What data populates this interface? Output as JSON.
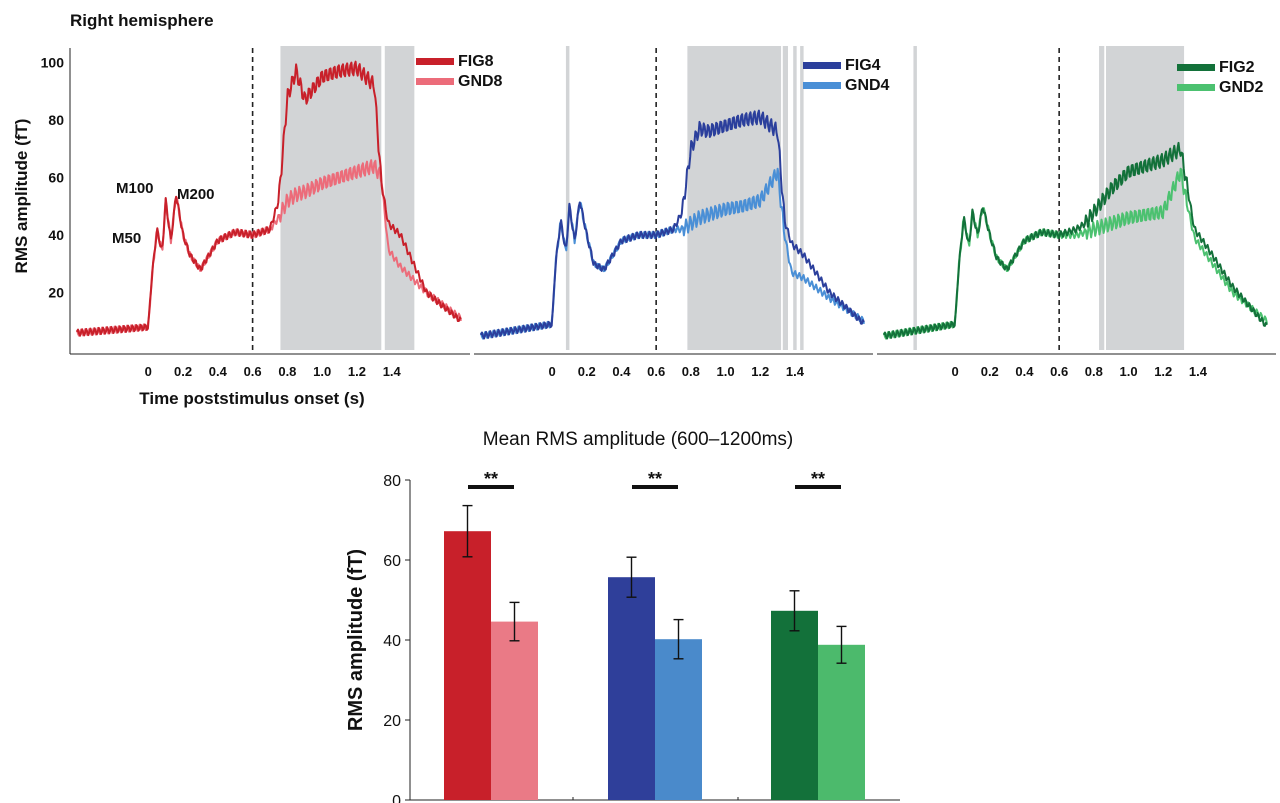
{
  "figure": {
    "hemisphere_label": "Right hemisphere",
    "ylabel_top": "RMS amplitude (fT)",
    "xlabel_top": "Time poststimulus onset (s)",
    "peak_labels": [
      "M50",
      "M100",
      "M200"
    ]
  },
  "chart_data": [
    {
      "type": "line",
      "panel": "FIG8 / GND8",
      "xlabel": "Time poststimulus onset (s)",
      "ylabel": "RMS amplitude (fT)",
      "xlim": [
        -0.45,
        1.85
      ],
      "ylim": [
        0,
        105
      ],
      "yticks": [
        20,
        40,
        60,
        80,
        100
      ],
      "xticks": [
        0,
        0.2,
        0.4,
        0.6,
        0.8,
        1.0,
        1.2,
        1.4
      ],
      "xtick_labels": [
        "0",
        "0.2",
        "0.4",
        "0.6",
        "0.8",
        "1.0",
        "1.2",
        "1.4"
      ],
      "stimulus_line": 0.6,
      "shaded_regions": [
        [
          0.76,
          1.34
        ],
        [
          1.36,
          1.53
        ]
      ],
      "legend": "top-right",
      "series": [
        {
          "name": "FIG8",
          "color": "#c8202a",
          "x": [
            -0.4,
            0.0,
            0.02,
            0.05,
            0.08,
            0.1,
            0.13,
            0.16,
            0.2,
            0.24,
            0.3,
            0.35,
            0.4,
            0.5,
            0.6,
            0.7,
            0.75,
            0.8,
            0.85,
            0.9,
            1.0,
            1.1,
            1.2,
            1.3,
            1.34,
            1.38,
            1.45,
            1.6,
            1.8
          ],
          "y": [
            6,
            8,
            25,
            42,
            34,
            52,
            38,
            54,
            40,
            33,
            28,
            33,
            38,
            41,
            40,
            42,
            52,
            88,
            97,
            87,
            95,
            97,
            98,
            92,
            58,
            44,
            40,
            20,
            10
          ]
        },
        {
          "name": "GND8",
          "color": "#ec6c7a",
          "x": [
            -0.4,
            0.0,
            0.02,
            0.05,
            0.08,
            0.1,
            0.13,
            0.16,
            0.2,
            0.24,
            0.3,
            0.35,
            0.4,
            0.5,
            0.6,
            0.7,
            0.75,
            0.8,
            0.85,
            0.9,
            1.0,
            1.1,
            1.2,
            1.3,
            1.34,
            1.38,
            1.45,
            1.6,
            1.8
          ],
          "y": [
            6,
            8,
            25,
            42,
            34,
            52,
            38,
            54,
            40,
            33,
            28,
            33,
            38,
            41,
            40,
            42,
            46,
            52,
            54,
            55,
            58,
            60,
            62,
            64,
            60,
            35,
            29,
            20,
            11
          ]
        }
      ]
    },
    {
      "type": "line",
      "panel": "FIG4 / GND4",
      "xlim": [
        -0.45,
        1.85
      ],
      "ylim": [
        0,
        105
      ],
      "xticks": [
        0,
        0.2,
        0.4,
        0.6,
        0.8,
        1.0,
        1.2,
        1.4
      ],
      "xtick_labels": [
        "0",
        "0.2",
        "0.4",
        "0.6",
        "0.8",
        "1.0",
        "1.2",
        "1.4"
      ],
      "stimulus_line": 0.6,
      "shaded_regions": [
        [
          0.08,
          0.1
        ],
        [
          0.78,
          1.32
        ],
        [
          1.33,
          1.36
        ],
        [
          1.39,
          1.41
        ],
        [
          1.43,
          1.45
        ]
      ],
      "legend": "top-right",
      "series": [
        {
          "name": "FIG4",
          "color": "#2b3f9c",
          "x": [
            -0.4,
            0.0,
            0.02,
            0.05,
            0.08,
            0.1,
            0.13,
            0.16,
            0.2,
            0.24,
            0.3,
            0.35,
            0.4,
            0.5,
            0.6,
            0.7,
            0.75,
            0.8,
            0.85,
            0.9,
            1.0,
            1.1,
            1.2,
            1.3,
            1.34,
            1.38,
            1.45,
            1.6,
            1.8
          ],
          "y": [
            5,
            9,
            30,
            45,
            34,
            50,
            38,
            52,
            40,
            30,
            28,
            33,
            38,
            40,
            40,
            42,
            48,
            70,
            77,
            76,
            78,
            80,
            81,
            76,
            45,
            37,
            33,
            20,
            9
          ]
        },
        {
          "name": "GND4",
          "color": "#4a8fd6",
          "x": [
            -0.4,
            0.0,
            0.02,
            0.05,
            0.08,
            0.1,
            0.13,
            0.16,
            0.2,
            0.24,
            0.3,
            0.35,
            0.4,
            0.5,
            0.6,
            0.7,
            0.75,
            0.8,
            0.85,
            0.9,
            1.0,
            1.1,
            1.2,
            1.3,
            1.34,
            1.38,
            1.45,
            1.6,
            1.8
          ],
          "y": [
            5,
            9,
            30,
            45,
            34,
            50,
            38,
            52,
            40,
            30,
            28,
            33,
            38,
            40,
            40,
            42,
            42,
            44,
            46,
            47,
            49,
            50,
            52,
            62,
            40,
            27,
            25,
            18,
            10
          ]
        }
      ]
    },
    {
      "type": "line",
      "panel": "FIG2 / GND2",
      "xlim": [
        -0.45,
        1.85
      ],
      "ylim": [
        0,
        105
      ],
      "xticks": [
        0,
        0.2,
        0.4,
        0.6,
        0.8,
        1.0,
        1.2,
        1.4
      ],
      "xtick_labels": [
        "0",
        "0.2",
        "0.4",
        "0.6",
        "0.8",
        "1.0",
        "1.2",
        "1.4"
      ],
      "stimulus_line": 0.6,
      "shaded_regions": [
        [
          -0.24,
          -0.22
        ],
        [
          0.83,
          0.86
        ],
        [
          0.87,
          1.32
        ]
      ],
      "legend": "top-right",
      "series": [
        {
          "name": "FIG2",
          "color": "#13713a",
          "x": [
            -0.4,
            0.0,
            0.02,
            0.05,
            0.08,
            0.1,
            0.13,
            0.16,
            0.2,
            0.24,
            0.3,
            0.35,
            0.4,
            0.5,
            0.6,
            0.7,
            0.75,
            0.8,
            0.85,
            0.9,
            1.0,
            1.1,
            1.2,
            1.3,
            1.34,
            1.38,
            1.45,
            1.6,
            1.8
          ],
          "y": [
            5,
            9,
            28,
            46,
            36,
            48,
            40,
            50,
            40,
            32,
            28,
            33,
            38,
            41,
            40,
            42,
            44,
            48,
            52,
            56,
            62,
            64,
            66,
            70,
            56,
            42,
            36,
            22,
            8
          ]
        },
        {
          "name": "GND2",
          "color": "#4cc170",
          "x": [
            -0.4,
            0.0,
            0.02,
            0.05,
            0.08,
            0.1,
            0.13,
            0.16,
            0.2,
            0.24,
            0.3,
            0.35,
            0.4,
            0.5,
            0.6,
            0.7,
            0.75,
            0.8,
            0.85,
            0.9,
            1.0,
            1.1,
            1.2,
            1.3,
            1.34,
            1.38,
            1.45,
            1.6,
            1.8
          ],
          "y": [
            5,
            9,
            28,
            46,
            36,
            48,
            40,
            50,
            40,
            32,
            28,
            33,
            38,
            41,
            40,
            40,
            41,
            42,
            43,
            44,
            46,
            47,
            48,
            62,
            50,
            39,
            33,
            20,
            10
          ]
        }
      ]
    },
    {
      "type": "bar",
      "title": "Mean RMS amplitude (600–1200ms)",
      "ylabel": "RMS amplitude (fT)",
      "ylim": [
        0,
        80
      ],
      "yticks": [
        0,
        20,
        40,
        60,
        80
      ],
      "significance": [
        "**",
        "**",
        "**"
      ],
      "groups": [
        {
          "bars": [
            {
              "name": "FIG8",
              "value": 67.2,
              "err": 6.4,
              "color": "#c8202a"
            },
            {
              "name": "GND8",
              "value": 44.6,
              "err": 4.8,
              "color": "#ea7a86"
            }
          ]
        },
        {
          "bars": [
            {
              "name": "FIG4",
              "value": 55.7,
              "err": 5.0,
              "color": "#2f3f9a"
            },
            {
              "name": "GND4",
              "value": 40.2,
              "err": 4.9,
              "color": "#4a8acb"
            }
          ]
        },
        {
          "bars": [
            {
              "name": "FIG2",
              "value": 47.3,
              "err": 5.0,
              "color": "#13713a"
            },
            {
              "name": "GND2",
              "value": 38.8,
              "err": 4.6,
              "color": "#4cba6c"
            }
          ]
        }
      ]
    }
  ]
}
